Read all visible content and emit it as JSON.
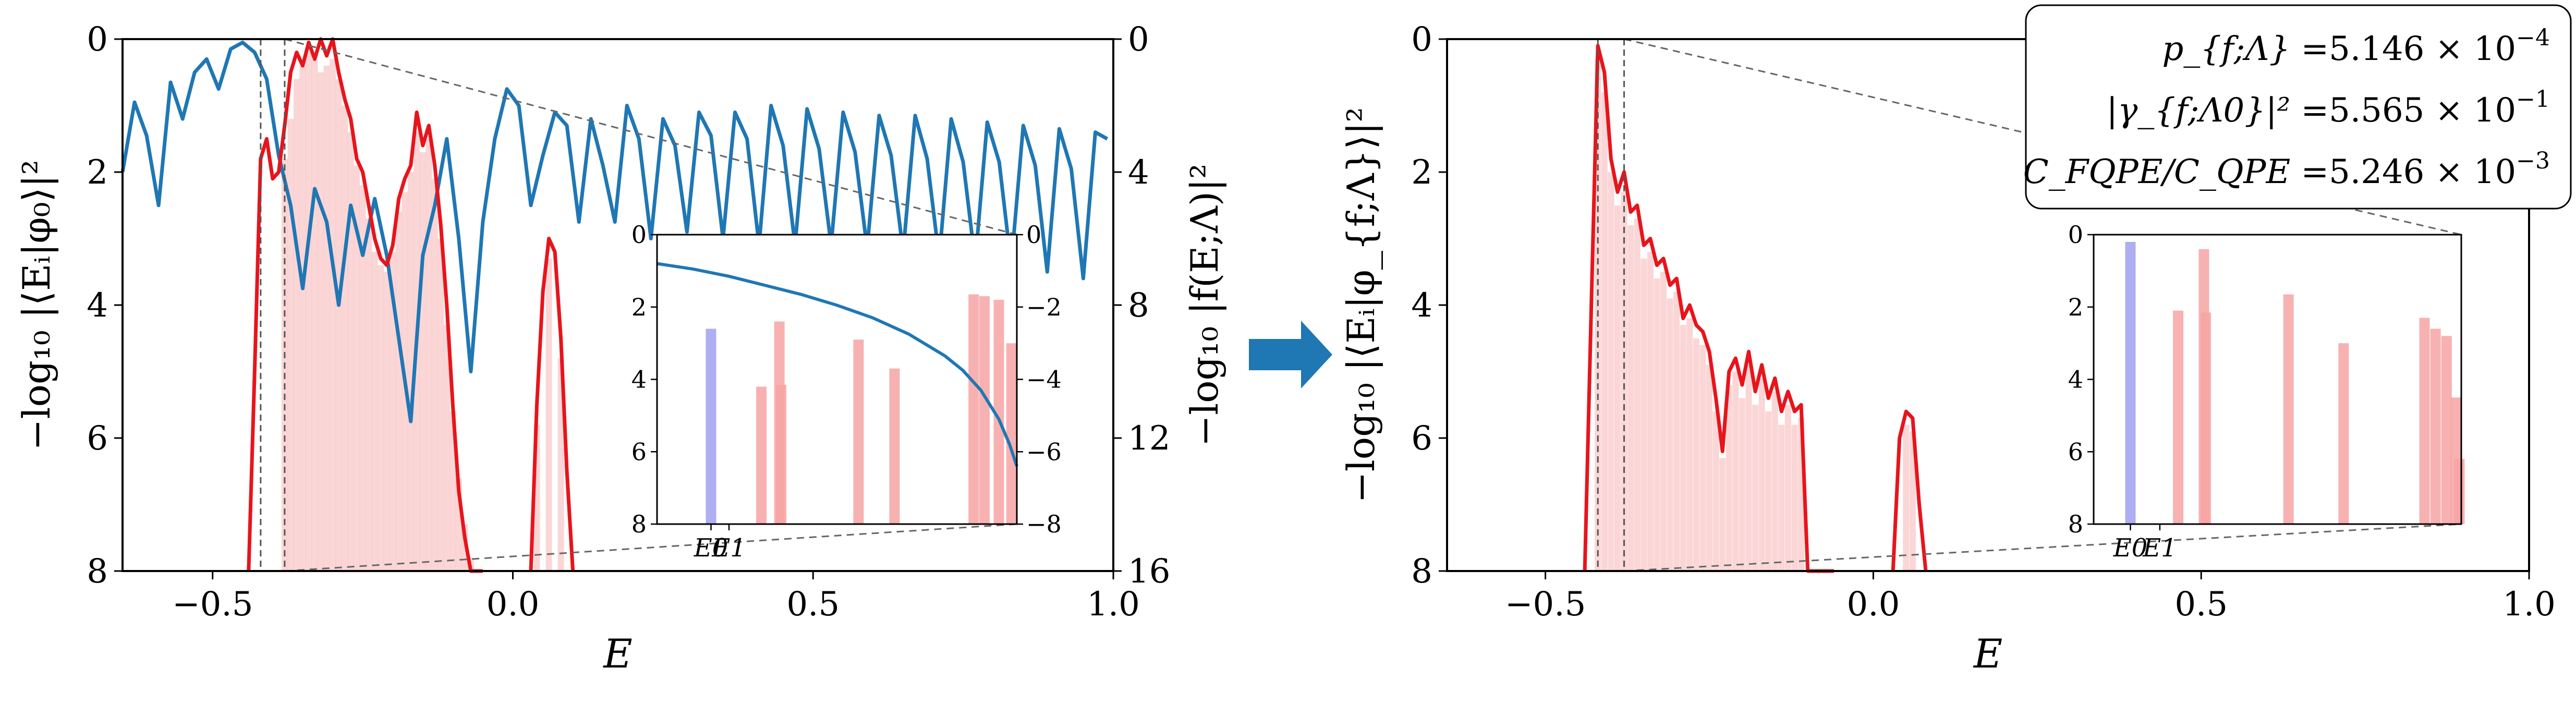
{
  "chart_data": [
    {
      "id": "left",
      "type": "line",
      "xlabel": "E",
      "ylabel": "−log₁₀ |⟨Eᵢ|φ₀⟩|²",
      "ylabel_right": "−log₁₀ |f(E;Λ)|²",
      "xlim": [
        -0.65,
        1.0
      ],
      "ylim": [
        0,
        8
      ],
      "y_inverted": true,
      "ylim_right": [
        0,
        16
      ],
      "x_ticks": [
        "−0.5",
        "0.0",
        "0.5",
        "1.0"
      ],
      "x_tick_values": [
        -0.5,
        0.0,
        0.5,
        1.0
      ],
      "y_ticks": [
        "0",
        "2",
        "4",
        "6",
        "8"
      ],
      "y_tick_values": [
        0,
        2,
        4,
        6,
        8
      ],
      "y_right_ticks": [
        "0",
        "4",
        "8",
        "12",
        "16"
      ],
      "y_right_tick_values": [
        0,
        4,
        8,
        12,
        16
      ],
      "vlines": [
        -0.42,
        -0.38
      ],
      "colors": {
        "envelope": "#e8141b",
        "filter": "#1f77b4",
        "bars": "#f7a3a3",
        "ground": "#a0a0f0",
        "guide": "#666666"
      },
      "series": [
        {
          "style": "envelope",
          "x": [
            -0.44,
            -0.43,
            -0.42,
            -0.41,
            -0.4,
            -0.39,
            -0.38,
            -0.37,
            -0.36,
            -0.35,
            -0.34,
            -0.33,
            -0.32,
            -0.31,
            -0.3,
            -0.29,
            -0.28,
            -0.27,
            -0.26,
            -0.25,
            -0.24,
            -0.23,
            -0.22,
            -0.21,
            -0.2,
            -0.19,
            -0.18,
            -0.17,
            -0.16,
            -0.15,
            -0.14,
            -0.13,
            -0.12,
            -0.11,
            -0.1,
            -0.09,
            -0.08,
            -0.07,
            -0.06,
            -0.05
          ],
          "y": [
            8.0,
            5.0,
            1.8,
            1.5,
            2.1,
            2.0,
            1.3,
            0.5,
            0.2,
            0.4,
            0.05,
            0.3,
            0.0,
            0.25,
            0.0,
            0.5,
            0.9,
            1.2,
            1.8,
            2.0,
            2.5,
            3.0,
            3.3,
            3.4,
            3.1,
            2.4,
            2.1,
            1.9,
            1.1,
            1.6,
            1.3,
            1.9,
            2.8,
            4.0,
            5.5,
            6.8,
            7.5,
            8.0,
            8.0,
            8.0
          ]
        },
        {
          "style": "envelope",
          "x": [
            0.03,
            0.04,
            0.05,
            0.06,
            0.07,
            0.08,
            0.09,
            0.1
          ],
          "y": [
            8.0,
            5.5,
            3.8,
            3.0,
            3.2,
            4.5,
            6.5,
            8.0
          ]
        },
        {
          "style": "filter",
          "axis": "right",
          "x": [
            -0.65,
            -0.63,
            -0.61,
            -0.59,
            -0.57,
            -0.55,
            -0.53,
            -0.51,
            -0.49,
            -0.47,
            -0.45,
            -0.43,
            -0.41,
            -0.39,
            -0.37,
            -0.35,
            -0.33,
            -0.31,
            -0.29,
            -0.27,
            -0.25,
            -0.23,
            -0.21,
            -0.19,
            -0.17,
            -0.15,
            -0.13,
            -0.11,
            -0.09,
            -0.07,
            -0.05,
            -0.03,
            -0.01,
            0.01,
            0.03,
            0.05,
            0.07,
            0.09,
            0.11,
            0.13,
            0.15,
            0.17,
            0.19,
            0.21,
            0.23,
            0.25,
            0.27,
            0.29,
            0.31,
            0.33,
            0.35,
            0.37,
            0.39,
            0.41,
            0.43,
            0.45,
            0.47,
            0.49,
            0.51,
            0.53,
            0.55,
            0.57,
            0.59,
            0.61,
            0.63,
            0.65,
            0.67,
            0.69,
            0.71,
            0.73,
            0.75,
            0.77,
            0.79,
            0.81,
            0.83,
            0.85,
            0.87,
            0.89,
            0.91,
            0.93,
            0.95,
            0.97,
            0.99
          ],
          "y": [
            4.0,
            1.9,
            2.9,
            5.0,
            1.3,
            2.4,
            1.0,
            0.6,
            1.5,
            0.3,
            0.1,
            0.4,
            1.2,
            3.5,
            5.0,
            7.5,
            4.5,
            5.5,
            8.0,
            5.0,
            6.5,
            4.8,
            6.5,
            9.0,
            11.5,
            6.5,
            5.0,
            3.0,
            6.0,
            10.0,
            5.5,
            3.0,
            1.5,
            2.0,
            5.0,
            3.5,
            2.2,
            2.6,
            5.5,
            2.4,
            3.8,
            5.5,
            2.0,
            3.0,
            6.0,
            2.4,
            3.2,
            5.8,
            2.2,
            2.9,
            6.0,
            2.2,
            3.0,
            6.2,
            2.0,
            3.2,
            6.2,
            2.1,
            3.3,
            6.2,
            2.2,
            3.4,
            6.3,
            2.3,
            3.5,
            6.4,
            2.3,
            3.6,
            6.6,
            2.4,
            3.7,
            6.7,
            2.5,
            3.7,
            6.8,
            2.6,
            3.8,
            7.0,
            2.7,
            3.9,
            7.2,
            2.8,
            3.0
          ]
        }
      ],
      "bars": {
        "x": [
          -0.38,
          -0.37,
          -0.36,
          -0.35,
          -0.34,
          -0.33,
          -0.32,
          -0.31,
          -0.3,
          -0.29,
          -0.28,
          -0.27,
          -0.26,
          -0.25,
          -0.24,
          -0.23,
          -0.22,
          -0.21,
          -0.2,
          -0.19,
          -0.18,
          -0.17,
          -0.16,
          -0.15,
          -0.14,
          -0.13,
          -0.12,
          -0.11,
          -0.1,
          -0.09,
          -0.08,
          -0.07,
          0.04,
          0.06,
          0.08
        ],
        "y": [
          1.8,
          1.2,
          0.6,
          0.4,
          0.2,
          0.3,
          0.5,
          0.4,
          0.3,
          0.6,
          1.0,
          1.4,
          1.9,
          2.2,
          2.7,
          3.2,
          3.4,
          3.5,
          3.2,
          2.6,
          2.3,
          2.0,
          1.4,
          1.7,
          1.5,
          2.1,
          3.0,
          4.3,
          5.6,
          6.6,
          7.3,
          7.8,
          5.8,
          3.3,
          4.8
        ]
      },
      "inset": {
        "ylim": [
          0,
          8
        ],
        "ylim_right": [
          0,
          8
        ],
        "y_ticks": [
          "0",
          "2",
          "4",
          "6",
          "8"
        ],
        "y_tick_values": [
          0,
          2,
          4,
          6,
          8
        ],
        "y_right_ticks": [
          "0",
          "2",
          "4",
          "6",
          "8"
        ],
        "y_right_tick_values": [
          0,
          2,
          4,
          6,
          8
        ],
        "x_tick_labels": [
          "E0",
          "E1"
        ],
        "x_tick_positions": [
          0.15,
          0.2
        ],
        "bars": [
          {
            "x": 0.15,
            "y": 2.6,
            "kind": "ground"
          },
          {
            "x": 0.29,
            "y": 4.2,
            "kind": "excited"
          },
          {
            "x": 0.34,
            "y": 2.4,
            "kind": "excited"
          },
          {
            "x": 0.345,
            "y": 4.15,
            "kind": "excited"
          },
          {
            "x": 0.56,
            "y": 2.9,
            "kind": "excited"
          },
          {
            "x": 0.66,
            "y": 3.7,
            "kind": "excited"
          },
          {
            "x": 0.88,
            "y": 1.65,
            "kind": "excited"
          },
          {
            "x": 0.91,
            "y": 1.7,
            "kind": "excited"
          },
          {
            "x": 0.95,
            "y": 1.8,
            "kind": "excited"
          },
          {
            "x": 0.985,
            "y": 3.0,
            "kind": "excited"
          }
        ],
        "filter_curve": {
          "x": [
            0.0,
            0.1,
            0.2,
            0.3,
            0.4,
            0.5,
            0.6,
            0.7,
            0.8,
            0.85,
            0.9,
            0.95,
            0.98,
            1.0
          ],
          "y": [
            0.8,
            0.95,
            1.15,
            1.4,
            1.65,
            1.95,
            2.3,
            2.75,
            3.35,
            3.75,
            4.3,
            5.1,
            5.8,
            6.4
          ]
        }
      }
    },
    {
      "id": "right",
      "type": "line",
      "xlabel": "E",
      "ylabel": "−log₁₀ |⟨Eᵢ|φ_{f;Λ}⟩|²",
      "xlim": [
        -0.65,
        1.0
      ],
      "ylim": [
        0,
        8
      ],
      "y_inverted": true,
      "x_ticks": [
        "−0.5",
        "0.0",
        "0.5",
        "1.0"
      ],
      "x_tick_values": [
        -0.5,
        0.0,
        0.5,
        1.0
      ],
      "y_ticks": [
        "0",
        "2",
        "4",
        "6",
        "8"
      ],
      "y_tick_values": [
        0,
        2,
        4,
        6,
        8
      ],
      "vlines": [
        -0.42,
        -0.38
      ],
      "colors": {
        "envelope": "#e8141b",
        "bars": "#f7a3a3",
        "ground": "#a0a0f0",
        "guide": "#666666"
      },
      "series": [
        {
          "style": "envelope",
          "x": [
            -0.44,
            -0.43,
            -0.42,
            -0.41,
            -0.4,
            -0.39,
            -0.38,
            -0.37,
            -0.36,
            -0.35,
            -0.34,
            -0.33,
            -0.32,
            -0.31,
            -0.3,
            -0.29,
            -0.28,
            -0.27,
            -0.26,
            -0.25,
            -0.24,
            -0.23,
            -0.22,
            -0.21,
            -0.2,
            -0.19,
            -0.18,
            -0.17,
            -0.16,
            -0.15,
            -0.14,
            -0.13,
            -0.12,
            -0.11,
            -0.1,
            -0.09,
            -0.08,
            -0.07,
            -0.06
          ],
          "y": [
            8.0,
            4.0,
            0.1,
            0.5,
            1.8,
            2.3,
            2.0,
            2.6,
            2.5,
            3.1,
            3.0,
            3.4,
            3.3,
            3.7,
            3.6,
            4.2,
            4.0,
            4.3,
            4.4,
            4.7,
            5.4,
            6.2,
            5.0,
            4.8,
            5.2,
            4.7,
            5.3,
            4.9,
            5.4,
            5.1,
            5.6,
            5.3,
            5.6,
            5.5,
            8.0,
            8.0,
            8.0,
            8.0,
            8.0
          ]
        },
        {
          "style": "envelope",
          "x": [
            0.03,
            0.04,
            0.05,
            0.06,
            0.07,
            0.08
          ],
          "y": [
            8.0,
            6.0,
            5.6,
            5.7,
            7.0,
            8.0
          ]
        }
      ],
      "bars": {
        "x": [
          -0.42,
          -0.41,
          -0.4,
          -0.39,
          -0.38,
          -0.37,
          -0.36,
          -0.35,
          -0.34,
          -0.33,
          -0.32,
          -0.31,
          -0.3,
          -0.29,
          -0.28,
          -0.27,
          -0.26,
          -0.25,
          -0.24,
          -0.23,
          -0.22,
          -0.21,
          -0.2,
          -0.19,
          -0.18,
          -0.17,
          -0.16,
          -0.15,
          -0.14,
          -0.13,
          -0.12,
          -0.11,
          0.05,
          0.06
        ],
        "y": [
          0.3,
          0.8,
          2.0,
          2.5,
          2.3,
          2.8,
          2.7,
          3.3,
          3.2,
          3.6,
          3.5,
          3.9,
          3.8,
          4.3,
          4.2,
          4.5,
          4.6,
          4.9,
          5.6,
          6.3,
          5.2,
          5.0,
          5.4,
          4.9,
          5.5,
          5.1,
          5.6,
          5.3,
          5.8,
          5.5,
          5.8,
          5.7,
          5.8,
          5.9
        ]
      },
      "annotation": [
        {
          "label": "p_{f;Λ}",
          "value": "5.146",
          "exponent": "−4"
        },
        {
          "label": "|γ_{f;Λ0}|²",
          "value": "5.565",
          "exponent": "−1"
        },
        {
          "label": "C_FQPE/C_QPE",
          "value": "5.246",
          "exponent": "−3"
        }
      ],
      "inset": {
        "ylim": [
          0,
          8
        ],
        "y_ticks": [
          "0",
          "2",
          "4",
          "6",
          "8"
        ],
        "y_tick_values": [
          0,
          2,
          4,
          6,
          8
        ],
        "x_tick_labels": [
          "E0",
          "E1"
        ],
        "x_tick_positions": [
          0.1,
          0.18
        ],
        "bars": [
          {
            "x": 0.1,
            "y": 0.2,
            "kind": "ground"
          },
          {
            "x": 0.23,
            "y": 2.1,
            "kind": "excited"
          },
          {
            "x": 0.3,
            "y": 0.4,
            "kind": "excited"
          },
          {
            "x": 0.305,
            "y": 2.15,
            "kind": "excited"
          },
          {
            "x": 0.53,
            "y": 1.65,
            "kind": "excited"
          },
          {
            "x": 0.68,
            "y": 3.0,
            "kind": "excited"
          },
          {
            "x": 0.9,
            "y": 2.3,
            "kind": "excited"
          },
          {
            "x": 0.93,
            "y": 2.6,
            "kind": "excited"
          },
          {
            "x": 0.96,
            "y": 2.8,
            "kind": "excited"
          },
          {
            "x": 0.985,
            "y": 4.5,
            "kind": "excited"
          },
          {
            "x": 0.995,
            "y": 6.2,
            "kind": "excited"
          }
        ]
      }
    }
  ],
  "arrow": {
    "direction": "right",
    "color": "#1f77b4"
  }
}
